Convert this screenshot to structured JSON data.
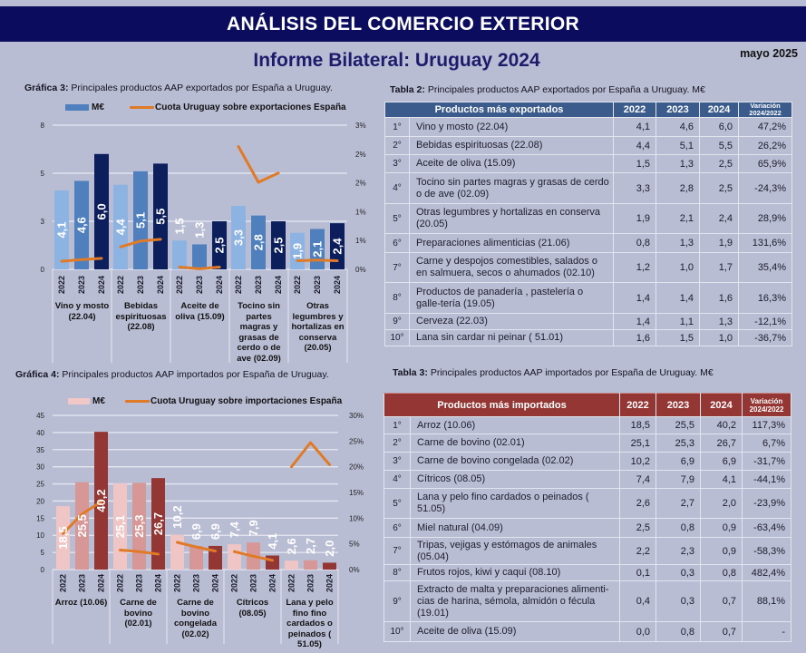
{
  "header": {
    "banner_title": "ANÁLISIS DEL COMERCIO EXTERIOR",
    "subtitle": "Informe Bilateral: Uruguay 2024",
    "date": "mayo 2025"
  },
  "captions": {
    "chart3_bold": "Gráfica 3:",
    "chart3_text": " Principales productos AAP exportados por España a Uruguay.",
    "chart4_bold": "Gráfica 4:",
    "chart4_text": " Principales productos AAP importados por España de Uruguay.",
    "table2_bold": "Tabla 2:",
    "table2_text": " Principales productos AAP exportados por España a Uruguay. M€",
    "table3_bold": "Tabla 3:",
    "table3_text": " Principales productos AAP importados por España de Uruguay. M€"
  },
  "colors": {
    "banner": "#0b0c5e",
    "subtitle": "#1c1b6c",
    "background": "#b9bdd4",
    "export_table_header": "#3b5b8d",
    "import_table_header": "#943634",
    "share_line": "#e07a27"
  },
  "chart_data": [
    {
      "type": "bar",
      "combo": "bar+line",
      "title": "Gráfica 3: Principales productos AAP exportados por España a Uruguay.",
      "categories": [
        "Vino y mosto (22.04)",
        "Bebidas espirituosas (22.08)",
        "Aceite de oliva (15.09)",
        "Tocino sin partes magras y grasas de cerdo o de ave (02.09)",
        "Otras legumbres y hortalizas en conserva (20.05)"
      ],
      "x_groups": [
        "2022",
        "2023",
        "2024"
      ],
      "series": [
        {
          "name": "M€",
          "type": "bar",
          "axis": "left",
          "legend_color": "#4f7fbd",
          "colors": [
            "#8db3e2",
            "#4f7fbd",
            "#0c1f5c"
          ],
          "values": [
            [
              4.1,
              4.6,
              6.0
            ],
            [
              4.4,
              5.1,
              5.5
            ],
            [
              1.5,
              1.3,
              2.5
            ],
            [
              3.3,
              2.8,
              2.5
            ],
            [
              1.9,
              2.1,
              2.4
            ]
          ]
        },
        {
          "name": "Cuota Uruguay sobre exportaciones España",
          "type": "line",
          "axis": "right",
          "unit": "%",
          "color": "#e07a27",
          "values": [
            [
              0.14,
              0.17,
              0.19
            ],
            [
              0.39,
              0.49,
              0.52
            ],
            [
              0.04,
              0.01,
              0.04
            ],
            [
              2.13,
              1.51,
              1.67
            ],
            [
              0.15,
              0.16,
              0.15
            ]
          ]
        }
      ],
      "data_labels": [
        [
          "4,1",
          "4,6",
          "6,0"
        ],
        [
          "4,4",
          "5,1",
          "5,5"
        ],
        [
          "1,5",
          "1,3",
          "2,5"
        ],
        [
          "3,3",
          "2,8",
          "2,5"
        ],
        [
          "1,9",
          "2,1",
          "2,4"
        ]
      ],
      "y_left": {
        "range": [
          0,
          7.5
        ],
        "ticks": [
          0,
          2.5,
          5,
          7.5
        ],
        "tick_labels": [
          "0",
          "3",
          "5",
          "8"
        ]
      },
      "y_right": {
        "range": [
          0,
          2.5
        ],
        "ticks": [
          0,
          0.5,
          1,
          1.5,
          2,
          2.5
        ],
        "tick_labels": [
          "0%",
          "1%",
          "1%",
          "2%",
          "2%",
          "3%"
        ]
      },
      "xlabel": "",
      "ylabel": "",
      "legend": "top",
      "grid": true
    },
    {
      "type": "bar",
      "combo": "bar+line",
      "title": "Gráfica 4: Principales productos AAP importados por España de Uruguay.",
      "categories": [
        "Arroz (10.06)",
        "Carne de bovino (02.01)",
        "Carne de bovino congelada (02.02)",
        "Cítricos (08.05)",
        "Lana y pelo fino fino cardados o peinados ( 51.05)"
      ],
      "x_groups": [
        "2022",
        "2023",
        "2024"
      ],
      "series": [
        {
          "name": "M€",
          "type": "bar",
          "axis": "left",
          "legend_color": "#f2c7c7",
          "colors": [
            "#f0c5c5",
            "#d79797",
            "#933634"
          ],
          "values": [
            [
              18.5,
              25.5,
              40.2
            ],
            [
              25.1,
              25.3,
              26.7
            ],
            [
              10.2,
              6.9,
              6.9
            ],
            [
              7.4,
              7.9,
              4.1
            ],
            [
              2.6,
              2.7,
              2.0
            ]
          ]
        },
        {
          "name": "Cuota Uruguay sobre importaciones España",
          "type": "line",
          "axis": "right",
          "unit": "%",
          "color": "#e07a27",
          "values": [
            [
              7.0,
              10.8,
              13.2
            ],
            [
              3.8,
              3.5,
              3.0
            ],
            [
              5.3,
              4.4,
              3.6
            ],
            [
              3.5,
              2.6,
              1.8
            ],
            [
              20.0,
              24.7,
              20.4
            ]
          ]
        }
      ],
      "data_labels": [
        [
          "18,5",
          "25,5",
          "40,2"
        ],
        [
          "25,1",
          "25,3",
          "26,7"
        ],
        [
          "10,2",
          "6,9",
          "6,9"
        ],
        [
          "7,4",
          "7,9",
          "4,1"
        ],
        [
          "2,6",
          "2,7",
          "2,0"
        ]
      ],
      "y_left": {
        "range": [
          0,
          45
        ],
        "ticks": [
          0,
          5,
          10,
          15,
          20,
          25,
          30,
          35,
          40,
          45
        ],
        "tick_labels": [
          "0",
          "5",
          "10",
          "15",
          "20",
          "25",
          "30",
          "35",
          "40",
          "45"
        ]
      },
      "y_right": {
        "range": [
          0,
          30
        ],
        "ticks": [
          0,
          5,
          10,
          15,
          20,
          25,
          30
        ],
        "tick_labels": [
          "0%",
          "5%",
          "10%",
          "15%",
          "20%",
          "25%",
          "30%"
        ]
      },
      "xlabel": "",
      "ylabel": "",
      "legend": "top",
      "grid": true
    }
  ],
  "table2": {
    "headers": {
      "product": "Productos más exportados",
      "y2022": "2022",
      "y2023": "2023",
      "y2024": "2024",
      "variation": "Variación 2024/2022"
    },
    "rows": [
      {
        "rank": "1°",
        "product": "Vino y mosto  (22.04)",
        "v2022": "4,1",
        "v2023": "4,6",
        "v2024": "6,0",
        "var": "47,2%"
      },
      {
        "rank": "2°",
        "product": "Bebidas espirituosas (22.08)",
        "v2022": "4,4",
        "v2023": "5,1",
        "v2024": "5,5",
        "var": "26,2%"
      },
      {
        "rank": "3°",
        "product": "Aceite de oliva  (15.09)",
        "v2022": "1,5",
        "v2023": "1,3",
        "v2024": "2,5",
        "var": "65,9%"
      },
      {
        "rank": "4°",
        "product": "Tocino sin partes magras y grasas de cerdo o de ave (02.09)",
        "v2022": "3,3",
        "v2023": "2,8",
        "v2024": "2,5",
        "var": "-24,3%"
      },
      {
        "rank": "5°",
        "product": "Otras legumbres y hortalizas en conserva (20.05)",
        "v2022": "1,9",
        "v2023": "2,1",
        "v2024": "2,4",
        "var": "28,9%"
      },
      {
        "rank": "6°",
        "product": "Preparaciones alimenticias (21.06)",
        "v2022": "0,8",
        "v2023": "1,3",
        "v2024": "1,9",
        "var": "131,6%"
      },
      {
        "rank": "7°",
        "product": "Carne y despojos comestibles, salados o en salmuera, secos o ahumados (02.10)",
        "v2022": "1,2",
        "v2023": "1,0",
        "v2024": "1,7",
        "var": "35,4%"
      },
      {
        "rank": "8°",
        "product": "Productos de panadería , pastelería o galle-tería (19.05)",
        "v2022": "1,4",
        "v2023": "1,4",
        "v2024": "1,6",
        "var": "16,3%"
      },
      {
        "rank": "9°",
        "product": "Cerveza (22.03)",
        "v2022": "1,4",
        "v2023": "1,1",
        "v2024": "1,3",
        "var": "-12,1%"
      },
      {
        "rank": "10°",
        "product": "Lana sin cardar ni peinar ( 51.01)",
        "v2022": "1,6",
        "v2023": "1,5",
        "v2024": "1,0",
        "var": "-36,7%"
      }
    ]
  },
  "table3": {
    "headers": {
      "product": "Productos más importados",
      "y2022": "2022",
      "y2023": "2023",
      "y2024": "2024",
      "variation": "Variación 2024/2022"
    },
    "rows": [
      {
        "rank": "1°",
        "product": "Arroz (10.06)",
        "v2022": "18,5",
        "v2023": "25,5",
        "v2024": "40,2",
        "var": "117,3%"
      },
      {
        "rank": "2°",
        "product": "Carne de bovino  (02.01)",
        "v2022": "25,1",
        "v2023": "25,3",
        "v2024": "26,7",
        "var": "6,7%"
      },
      {
        "rank": "3°",
        "product": "Carne de bovino congelada (02.02)",
        "v2022": "10,2",
        "v2023": "6,9",
        "v2024": "6,9",
        "var": "-31,7%"
      },
      {
        "rank": "4°",
        "product": "Cítricos (08.05)",
        "v2022": "7,4",
        "v2023": "7,9",
        "v2024": "4,1",
        "var": "-44,1%"
      },
      {
        "rank": "5°",
        "product": "Lana y pelo fino cardados o peinados ( 51.05)",
        "v2022": "2,6",
        "v2023": "2,7",
        "v2024": "2,0",
        "var": "-23,9%"
      },
      {
        "rank": "6°",
        "product": "Miel natural (04.09)",
        "v2022": "2,5",
        "v2023": "0,8",
        "v2024": "0,9",
        "var": "-63,4%"
      },
      {
        "rank": "7°",
        "product": "Tripas, vejigas y estómagos de animales (05.04)",
        "v2022": "2,2",
        "v2023": "2,3",
        "v2024": "0,9",
        "var": "-58,3%"
      },
      {
        "rank": "8°",
        "product": "Frutos rojos, kiwi  y caqui  (08.10)",
        "v2022": "0,1",
        "v2023": "0,3",
        "v2024": "0,8",
        "var": "482,4%"
      },
      {
        "rank": "9°",
        "product": "Extracto de malta y preparaciones alimenti-cias de harina, sémola, almidón o fécula (19.01)",
        "v2022": "0,4",
        "v2023": "0,3",
        "v2024": "0,7",
        "var": "88,1%"
      },
      {
        "rank": "10°",
        "product": "Aceite de oliva  (15.09)",
        "v2022": "0,0",
        "v2023": "0,8",
        "v2024": "0,7",
        "var": "-"
      }
    ]
  }
}
